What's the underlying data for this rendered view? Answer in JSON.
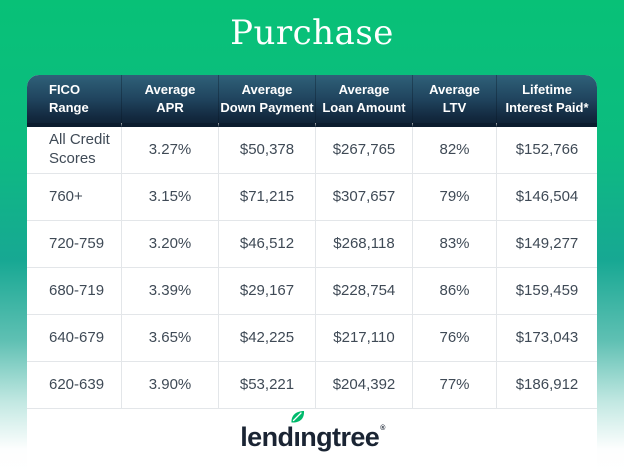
{
  "title": "Purchase",
  "colors": {
    "background_top_green": "#08C177",
    "background_mid_teal": "#17A893",
    "background_bottom": "#FFFFFF",
    "header_gradient_top": "#2F6179",
    "header_gradient_bottom": "#102438",
    "header_text": "#FFFFFF",
    "body_text": "#3F4A56",
    "logo_navy": "#1A2433",
    "leaf_green": "#00BA6C"
  },
  "chart_data": {
    "type": "table",
    "title": "Purchase",
    "columns": [
      "FICO\nRange",
      "Average\nAPR",
      "Average\nDown Payment",
      "Average\nLoan Amount",
      "Average\nLTV",
      "Lifetime\nInterest Paid*"
    ],
    "rows": [
      [
        "All Credit Scores",
        "3.27%",
        "$50,378",
        "$267,765",
        "82%",
        "$152,766"
      ],
      [
        "760+",
        "3.15%",
        "$71,215",
        "$307,657",
        "79%",
        "$146,504"
      ],
      [
        "720-759",
        "3.20%",
        "$46,512",
        "$268,118",
        "83%",
        "$149,277"
      ],
      [
        "680-719",
        "3.39%",
        "$29,167",
        "$228,754",
        "86%",
        "$159,459"
      ],
      [
        "640-679",
        "3.65%",
        "$42,225",
        "$217,110",
        "76%",
        "$173,043"
      ],
      [
        "620-639",
        "3.90%",
        "$53,221",
        "$204,392",
        "77%",
        "$186,912"
      ]
    ]
  },
  "logo": {
    "text_before_leaf": "lend",
    "dotless_i": "ı",
    "text_after_leaf": "ngtree",
    "trademark": "®"
  }
}
